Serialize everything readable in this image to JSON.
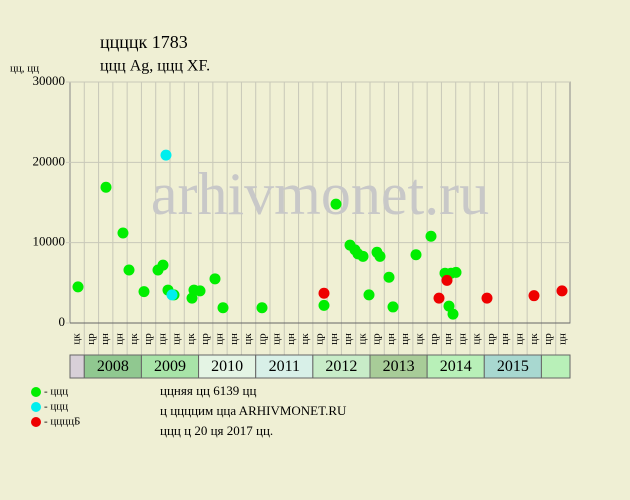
{
  "chart_data": {
    "type": "scatter",
    "title": "ццццк 1783",
    "subtitle": "ццц Ag, ццц XF.",
    "y_label": "цц, цц",
    "watermark": "arhivmonet.ru",
    "xlim": [
      0,
      35
    ],
    "ylim": [
      0,
      30000
    ],
    "yticks": [
      0,
      10000,
      20000,
      30000
    ],
    "grid": true,
    "categories": [
      "цк",
      "цр",
      "цн",
      "цн",
      "цк",
      "цр",
      "цн",
      "цн",
      "цк",
      "цр",
      "цн",
      "цн",
      "цк",
      "цр",
      "цн",
      "цн",
      "цк",
      "цр",
      "цн",
      "цн",
      "цк",
      "цр",
      "цн",
      "цн",
      "цк",
      "цр",
      "цн",
      "цн",
      "цк",
      "цр",
      "цн",
      "цн",
      "цк",
      "цр",
      "цн"
    ],
    "years": [
      {
        "name": "2008",
        "color": "#90c890"
      },
      {
        "name": "2009",
        "color": "#a8e4a8"
      },
      {
        "name": "2010",
        "color": "#e4f4e4"
      },
      {
        "name": "2011",
        "color": "#d8f0e8"
      },
      {
        "name": "2012",
        "color": "#c8ecc8"
      },
      {
        "name": "2013",
        "color": "#a8cc98"
      },
      {
        "name": "2014",
        "color": "#b8f0b8"
      },
      {
        "name": "2015",
        "color": "#a8d8d0"
      }
    ],
    "series": [
      {
        "name": "- ццц",
        "color": "#00ee00",
        "x": [
          0.56,
          2.52,
          3.71,
          4.13,
          5.18,
          6.16,
          6.51,
          6.86,
          7.28,
          8.54,
          8.68,
          9.1,
          10.15,
          10.71,
          13.44,
          17.78,
          18.62,
          19.6,
          19.95,
          20.16,
          20.51,
          20.93,
          21.49,
          21.7,
          22.33,
          22.61,
          24.22,
          25.27,
          26.25,
          26.53,
          26.67,
          26.81,
          27.02
        ],
        "values": [
          4500,
          16900,
          11200,
          6600,
          3900,
          6600,
          7200,
          4100,
          3500,
          3100,
          4100,
          4000,
          5500,
          1900,
          1900,
          2200,
          14800,
          9700,
          9100,
          8600,
          8300,
          3500,
          8800,
          8300,
          5700,
          2000,
          8500,
          10800,
          6200,
          2100,
          6200,
          1100,
          6300
        ]
      },
      {
        "name": "- ццц",
        "color": "#00eeee",
        "x": [
          6.72,
          7.14
        ],
        "values": [
          20900,
          3500
        ]
      },
      {
        "name": "- ццццБ",
        "color": "#ee0000",
        "x": [
          17.78,
          25.83,
          26.39,
          29.19,
          32.48,
          34.44
        ],
        "values": [
          3700,
          3100,
          5300,
          3100,
          3400,
          4000
        ]
      }
    ],
    "notes": [
      "ццняя цц 6139 цц",
      "ц ццццим ццa ARHIVMONET.RU",
      "ццц ц 20 ця 2017 цц."
    ]
  }
}
